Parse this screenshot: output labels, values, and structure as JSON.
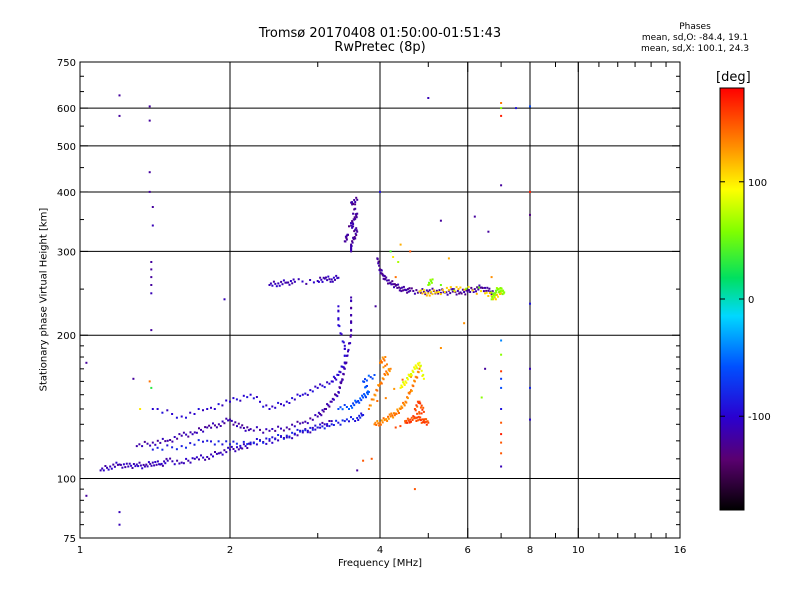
{
  "chart_data": {
    "type": "scatter",
    "title": "Tromsø 20170408 01:50:00-01:51:43",
    "subtitle": "RwPretec (8p)",
    "phases": {
      "heading": "Phases",
      "line_o": "mean, sd,O: -84.4, 19.1",
      "line_x": "mean, sd,X: 100.1, 24.3"
    },
    "xlabel": "Frequency [MHz]",
    "ylabel": "Stationary phase Virtual Height [km]",
    "x_scale": "log",
    "y_scale": "log",
    "xlim": [
      1,
      16
    ],
    "ylim": [
      75,
      750
    ],
    "x_ticks": [
      1,
      2,
      4,
      6,
      8,
      10,
      16
    ],
    "x_tick_labels": [
      "1",
      "2",
      "4",
      "6",
      "8",
      "10",
      "16"
    ],
    "y_ticks": [
      75,
      100,
      200,
      300,
      400,
      500,
      600,
      750
    ],
    "y_tick_labels": [
      "75",
      "100",
      "200",
      "300",
      "400",
      "500",
      "600",
      "750"
    ],
    "grid": true,
    "colorbar": {
      "label": "[deg]",
      "range": [
        -180,
        180
      ],
      "ticks": [
        100,
        0,
        -100
      ],
      "tick_labels": [
        "100",
        "0",
        "-100"
      ]
    },
    "traces": [
      {
        "phase": -110,
        "points": [
          [
            1.1,
            104
          ],
          [
            1.15,
            106
          ],
          [
            1.2,
            107
          ],
          [
            1.25,
            106
          ],
          [
            1.3,
            107
          ],
          [
            1.35,
            106
          ],
          [
            1.4,
            108
          ],
          [
            1.45,
            107
          ],
          [
            1.5,
            109
          ],
          [
            1.6,
            108
          ],
          [
            1.7,
            110
          ],
          [
            1.8,
            111
          ],
          [
            1.9,
            113
          ],
          [
            2.0,
            115
          ],
          [
            2.1,
            116
          ],
          [
            2.2,
            118
          ],
          [
            2.4,
            120
          ],
          [
            2.6,
            122
          ],
          [
            2.8,
            125
          ],
          [
            3.0,
            128
          ],
          [
            3.2,
            132
          ]
        ]
      },
      {
        "phase": -115,
        "points": [
          [
            1.3,
            117
          ],
          [
            1.4,
            119
          ],
          [
            1.5,
            120
          ],
          [
            1.6,
            123
          ],
          [
            1.7,
            125
          ],
          [
            1.8,
            128
          ],
          [
            1.9,
            130
          ],
          [
            2.0,
            133
          ],
          [
            2.1,
            128
          ],
          [
            2.2,
            127
          ],
          [
            2.4,
            126
          ],
          [
            2.6,
            128
          ],
          [
            2.8,
            131
          ],
          [
            3.0,
            135
          ],
          [
            3.1,
            140
          ],
          [
            3.2,
            145
          ],
          [
            3.3,
            152
          ],
          [
            3.35,
            160
          ],
          [
            3.4,
            170
          ],
          [
            3.45,
            185
          ],
          [
            3.5,
            200
          ],
          [
            3.5,
            220
          ],
          [
            3.5,
            240
          ]
        ]
      },
      {
        "phase": -85,
        "points": [
          [
            1.4,
            115
          ],
          [
            1.6,
            117
          ],
          [
            1.8,
            120
          ],
          [
            2.0,
            118
          ],
          [
            2.2,
            119
          ],
          [
            2.4,
            121
          ],
          [
            2.6,
            123
          ],
          [
            2.8,
            126
          ],
          [
            3.0,
            128
          ],
          [
            3.2,
            130
          ],
          [
            3.4,
            132
          ],
          [
            3.6,
            134
          ],
          [
            3.7,
            136
          ]
        ]
      },
      {
        "phase": -100,
        "points": [
          [
            1.4,
            140
          ],
          [
            1.6,
            135
          ],
          [
            1.8,
            140
          ],
          [
            2.0,
            145
          ],
          [
            2.2,
            150
          ],
          [
            2.4,
            140
          ],
          [
            2.6,
            145
          ],
          [
            2.8,
            150
          ],
          [
            3.0,
            155
          ],
          [
            3.2,
            160
          ],
          [
            3.3,
            165
          ],
          [
            3.4,
            175
          ],
          [
            3.4,
            190
          ],
          [
            3.3,
            210
          ],
          [
            3.3,
            230
          ]
        ]
      },
      {
        "phase": -110,
        "points": [
          [
            2.4,
            255
          ],
          [
            2.5,
            257
          ],
          [
            2.6,
            258
          ],
          [
            2.7,
            259
          ],
          [
            3.0,
            260
          ],
          [
            3.1,
            263
          ],
          [
            3.2,
            262
          ],
          [
            3.3,
            264
          ]
        ]
      },
      {
        "phase": -120,
        "points": [
          [
            3.5,
            300
          ],
          [
            3.5,
            310
          ],
          [
            3.55,
            320
          ],
          [
            3.6,
            330
          ],
          [
            3.5,
            340
          ],
          [
            3.55,
            350
          ],
          [
            3.6,
            360
          ],
          [
            3.5,
            380
          ],
          [
            3.6,
            385
          ],
          [
            3.4,
            315
          ],
          [
            3.45,
            325
          ]
        ]
      },
      {
        "phase": -120,
        "points": [
          [
            3.95,
            290
          ],
          [
            4.0,
            275
          ],
          [
            4.05,
            268
          ],
          [
            4.1,
            262
          ],
          [
            4.2,
            258
          ],
          [
            4.3,
            254
          ],
          [
            4.4,
            251
          ],
          [
            4.5,
            249
          ],
          [
            4.6,
            248
          ],
          [
            4.8,
            247
          ],
          [
            5.0,
            247
          ],
          [
            5.2,
            248
          ],
          [
            5.4,
            246
          ],
          [
            5.6,
            247
          ],
          [
            5.8,
            246
          ],
          [
            6.0,
            247
          ],
          [
            6.2,
            250
          ],
          [
            6.4,
            252
          ],
          [
            6.6,
            248
          ],
          [
            6.8,
            245
          ]
        ]
      },
      {
        "phase": 110,
        "points": [
          [
            4.8,
            247
          ],
          [
            5.0,
            245
          ],
          [
            5.2,
            246
          ],
          [
            5.5,
            249
          ],
          [
            5.8,
            252
          ],
          [
            6.5,
            245
          ],
          [
            6.8,
            240
          ],
          [
            7.0,
            245
          ]
        ]
      },
      {
        "phase": 60,
        "points": [
          [
            6.7,
            238
          ],
          [
            6.8,
            245
          ],
          [
            6.9,
            250
          ],
          [
            7.0,
            248
          ],
          [
            7.1,
            246
          ],
          [
            5.0,
            255
          ],
          [
            5.1,
            262
          ]
        ]
      },
      {
        "phase": 135,
        "points": [
          [
            3.9,
            130
          ],
          [
            4.0,
            131
          ],
          [
            4.1,
            133
          ],
          [
            4.2,
            135
          ],
          [
            4.3,
            137
          ],
          [
            4.4,
            140
          ],
          [
            4.5,
            145
          ],
          [
            4.6,
            152
          ],
          [
            4.7,
            160
          ],
          [
            4.8,
            170
          ],
          [
            3.8,
            140
          ],
          [
            3.9,
            150
          ],
          [
            4.0,
            158
          ],
          [
            4.1,
            165
          ],
          [
            4.2,
            170
          ],
          [
            4.0,
            175
          ],
          [
            4.1,
            180
          ]
        ]
      },
      {
        "phase": 155,
        "points": [
          [
            4.5,
            131
          ],
          [
            4.6,
            133
          ],
          [
            4.7,
            134
          ],
          [
            4.8,
            133
          ],
          [
            4.9,
            132
          ],
          [
            5.0,
            131
          ],
          [
            4.7,
            140
          ],
          [
            4.8,
            145
          ],
          [
            4.9,
            138
          ],
          [
            4.3,
            128
          ]
        ]
      },
      {
        "phase": 90,
        "points": [
          [
            4.4,
            155
          ],
          [
            4.5,
            160
          ],
          [
            4.6,
            165
          ],
          [
            4.7,
            170
          ],
          [
            4.8,
            175
          ],
          [
            4.9,
            162
          ]
        ]
      },
      {
        "phase": -60,
        "points": [
          [
            3.3,
            140
          ],
          [
            3.5,
            142
          ],
          [
            3.6,
            145
          ],
          [
            3.7,
            148
          ],
          [
            3.8,
            152
          ],
          [
            3.7,
            160
          ],
          [
            3.9,
            165
          ]
        ]
      }
    ],
    "scatter": [
      {
        "x": 1.03,
        "y": 175,
        "phase": -120
      },
      {
        "x": 1.03,
        "y": 92,
        "phase": -120
      },
      {
        "x": 1.2,
        "y": 638,
        "phase": -120
      },
      {
        "x": 1.2,
        "y": 578,
        "phase": -120
      },
      {
        "x": 1.2,
        "y": 80,
        "phase": -110
      },
      {
        "x": 1.2,
        "y": 85,
        "phase": -110
      },
      {
        "x": 1.38,
        "y": 605,
        "phase": -120
      },
      {
        "x": 1.38,
        "y": 565,
        "phase": -120
      },
      {
        "x": 1.38,
        "y": 440,
        "phase": -120
      },
      {
        "x": 1.38,
        "y": 400,
        "phase": -120
      },
      {
        "x": 1.4,
        "y": 372,
        "phase": -120
      },
      {
        "x": 1.4,
        "y": 340,
        "phase": -110
      },
      {
        "x": 1.39,
        "y": 285,
        "phase": -120
      },
      {
        "x": 1.39,
        "y": 275,
        "phase": -120
      },
      {
        "x": 1.39,
        "y": 265,
        "phase": -120
      },
      {
        "x": 1.39,
        "y": 255,
        "phase": -120
      },
      {
        "x": 1.39,
        "y": 245,
        "phase": -110
      },
      {
        "x": 1.39,
        "y": 205,
        "phase": -120
      },
      {
        "x": 1.28,
        "y": 162,
        "phase": -120
      },
      {
        "x": 1.38,
        "y": 160,
        "phase": 140
      },
      {
        "x": 1.39,
        "y": 155,
        "phase": 30
      },
      {
        "x": 1.32,
        "y": 140,
        "phase": 100
      },
      {
        "x": 1.95,
        "y": 238,
        "phase": -110
      },
      {
        "x": 4.0,
        "y": 400,
        "phase": -90
      },
      {
        "x": 3.92,
        "y": 230,
        "phase": -120
      },
      {
        "x": 4.6,
        "y": 300,
        "phase": 150
      },
      {
        "x": 4.4,
        "y": 310,
        "phase": 120
      },
      {
        "x": 5.0,
        "y": 630,
        "phase": -110
      },
      {
        "x": 5.3,
        "y": 348,
        "phase": -120
      },
      {
        "x": 5.5,
        "y": 290,
        "phase": 120
      },
      {
        "x": 5.6,
        "y": 250,
        "phase": -110
      },
      {
        "x": 5.9,
        "y": 212,
        "phase": 130
      },
      {
        "x": 6.2,
        "y": 355,
        "phase": -120
      },
      {
        "x": 6.6,
        "y": 330,
        "phase": -120
      },
      {
        "x": 5.3,
        "y": 188,
        "phase": 130
      },
      {
        "x": 4.7,
        "y": 95,
        "phase": 150
      },
      {
        "x": 3.7,
        "y": 109,
        "phase": 150
      },
      {
        "x": 3.6,
        "y": 104,
        "phase": -120
      },
      {
        "x": 3.85,
        "y": 110,
        "phase": 150
      },
      {
        "x": 7.0,
        "y": 615,
        "phase": 140
      },
      {
        "x": 7.0,
        "y": 600,
        "phase": 60
      },
      {
        "x": 7.0,
        "y": 578,
        "phase": 170
      },
      {
        "x": 7.0,
        "y": 413,
        "phase": -120
      },
      {
        "x": 7.0,
        "y": 195,
        "phase": -40
      },
      {
        "x": 7.0,
        "y": 182,
        "phase": 60
      },
      {
        "x": 7.0,
        "y": 168,
        "phase": 160
      },
      {
        "x": 7.0,
        "y": 162,
        "phase": -70
      },
      {
        "x": 7.0,
        "y": 155,
        "phase": -60
      },
      {
        "x": 7.0,
        "y": 140,
        "phase": -90
      },
      {
        "x": 7.0,
        "y": 131,
        "phase": 150
      },
      {
        "x": 7.0,
        "y": 124,
        "phase": 170
      },
      {
        "x": 7.0,
        "y": 119,
        "phase": 150
      },
      {
        "x": 7.0,
        "y": 113,
        "phase": 150
      },
      {
        "x": 7.0,
        "y": 106,
        "phase": -110
      },
      {
        "x": 6.5,
        "y": 170,
        "phase": -120
      },
      {
        "x": 6.4,
        "y": 148,
        "phase": 60
      },
      {
        "x": 6.7,
        "y": 265,
        "phase": 130
      },
      {
        "x": 7.5,
        "y": 600,
        "phase": -90
      },
      {
        "x": 8.0,
        "y": 605,
        "phase": -60
      },
      {
        "x": 8.0,
        "y": 400,
        "phase": 170
      },
      {
        "x": 8.0,
        "y": 358,
        "phase": -130
      },
      {
        "x": 8.0,
        "y": 233,
        "phase": -90
      },
      {
        "x": 8.0,
        "y": 170,
        "phase": -110
      },
      {
        "x": 8.0,
        "y": 155,
        "phase": -80
      },
      {
        "x": 8.0,
        "y": 133,
        "phase": -100
      },
      {
        "x": 4.3,
        "y": 265,
        "phase": 140
      },
      {
        "x": 4.2,
        "y": 300,
        "phase": 40
      },
      {
        "x": 4.25,
        "y": 292,
        "phase": 100
      },
      {
        "x": 4.35,
        "y": 285,
        "phase": 70
      }
    ]
  }
}
